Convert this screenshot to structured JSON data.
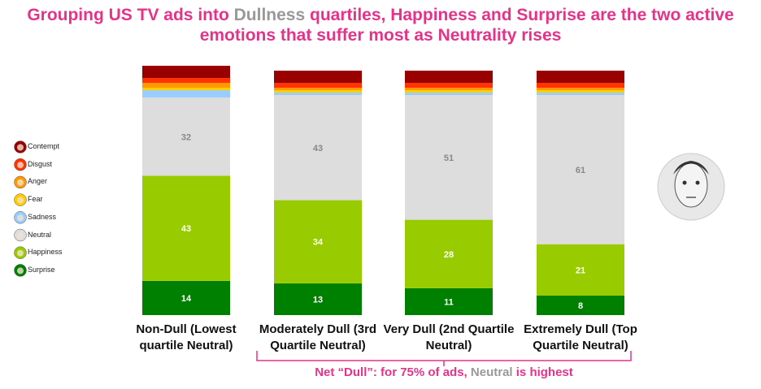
{
  "chart_data": {
    "type": "bar",
    "stacked": true,
    "title": [
      {
        "text": "Grouping US TV ads into ",
        "color": "#e6338a"
      },
      {
        "text": "Dullness",
        "color": "#999999"
      },
      {
        "text": " quartiles, Happiness and Surprise are the two active emotions that suffer most as Neutrality rises",
        "color": "#e6338a"
      }
    ],
    "categories": [
      "Non-Dull (Lowest quartile Neutral)",
      "Moderately Dull (3rd Quartile Neutral)",
      "Very Dull (2nd Quartile Neutral)",
      "Extremely Dull (Top Quartile Neutral)"
    ],
    "series": [
      {
        "name": "Contempt",
        "color": "#990000",
        "values": [
          5,
          5,
          5,
          5
        ]
      },
      {
        "name": "Disgust",
        "color": "#ff3300",
        "values": [
          2,
          2,
          2,
          2
        ]
      },
      {
        "name": "Anger",
        "color": "#ff9900",
        "values": [
          2,
          1,
          1,
          1
        ]
      },
      {
        "name": "Fear",
        "color": "#ffcc00",
        "values": [
          1,
          1,
          1,
          1
        ]
      },
      {
        "name": "Sadness",
        "color": "#99ccff",
        "values": [
          3,
          1,
          1,
          1
        ]
      },
      {
        "name": "Neutral",
        "color": "#dddddd",
        "values": [
          32,
          43,
          51,
          61
        ],
        "labels": true,
        "label_color": "#888888"
      },
      {
        "name": "Happiness",
        "color": "#99cc00",
        "values": [
          43,
          34,
          28,
          21
        ],
        "labels": true,
        "label_color": "#ffffff"
      },
      {
        "name": "Surprise",
        "color": "#008000",
        "values": [
          14,
          13,
          11,
          8
        ],
        "labels": true,
        "label_color": "#ffffff"
      }
    ],
    "ylim": [
      0,
      100
    ],
    "legend": "left",
    "note": [
      {
        "text": "Net “Dull”: for 75% of ads, ",
        "color": "#e6338a"
      },
      {
        "text": "Neutral",
        "color": "#999999"
      },
      {
        "text": " is highest",
        "color": "#e6338a"
      }
    ]
  }
}
